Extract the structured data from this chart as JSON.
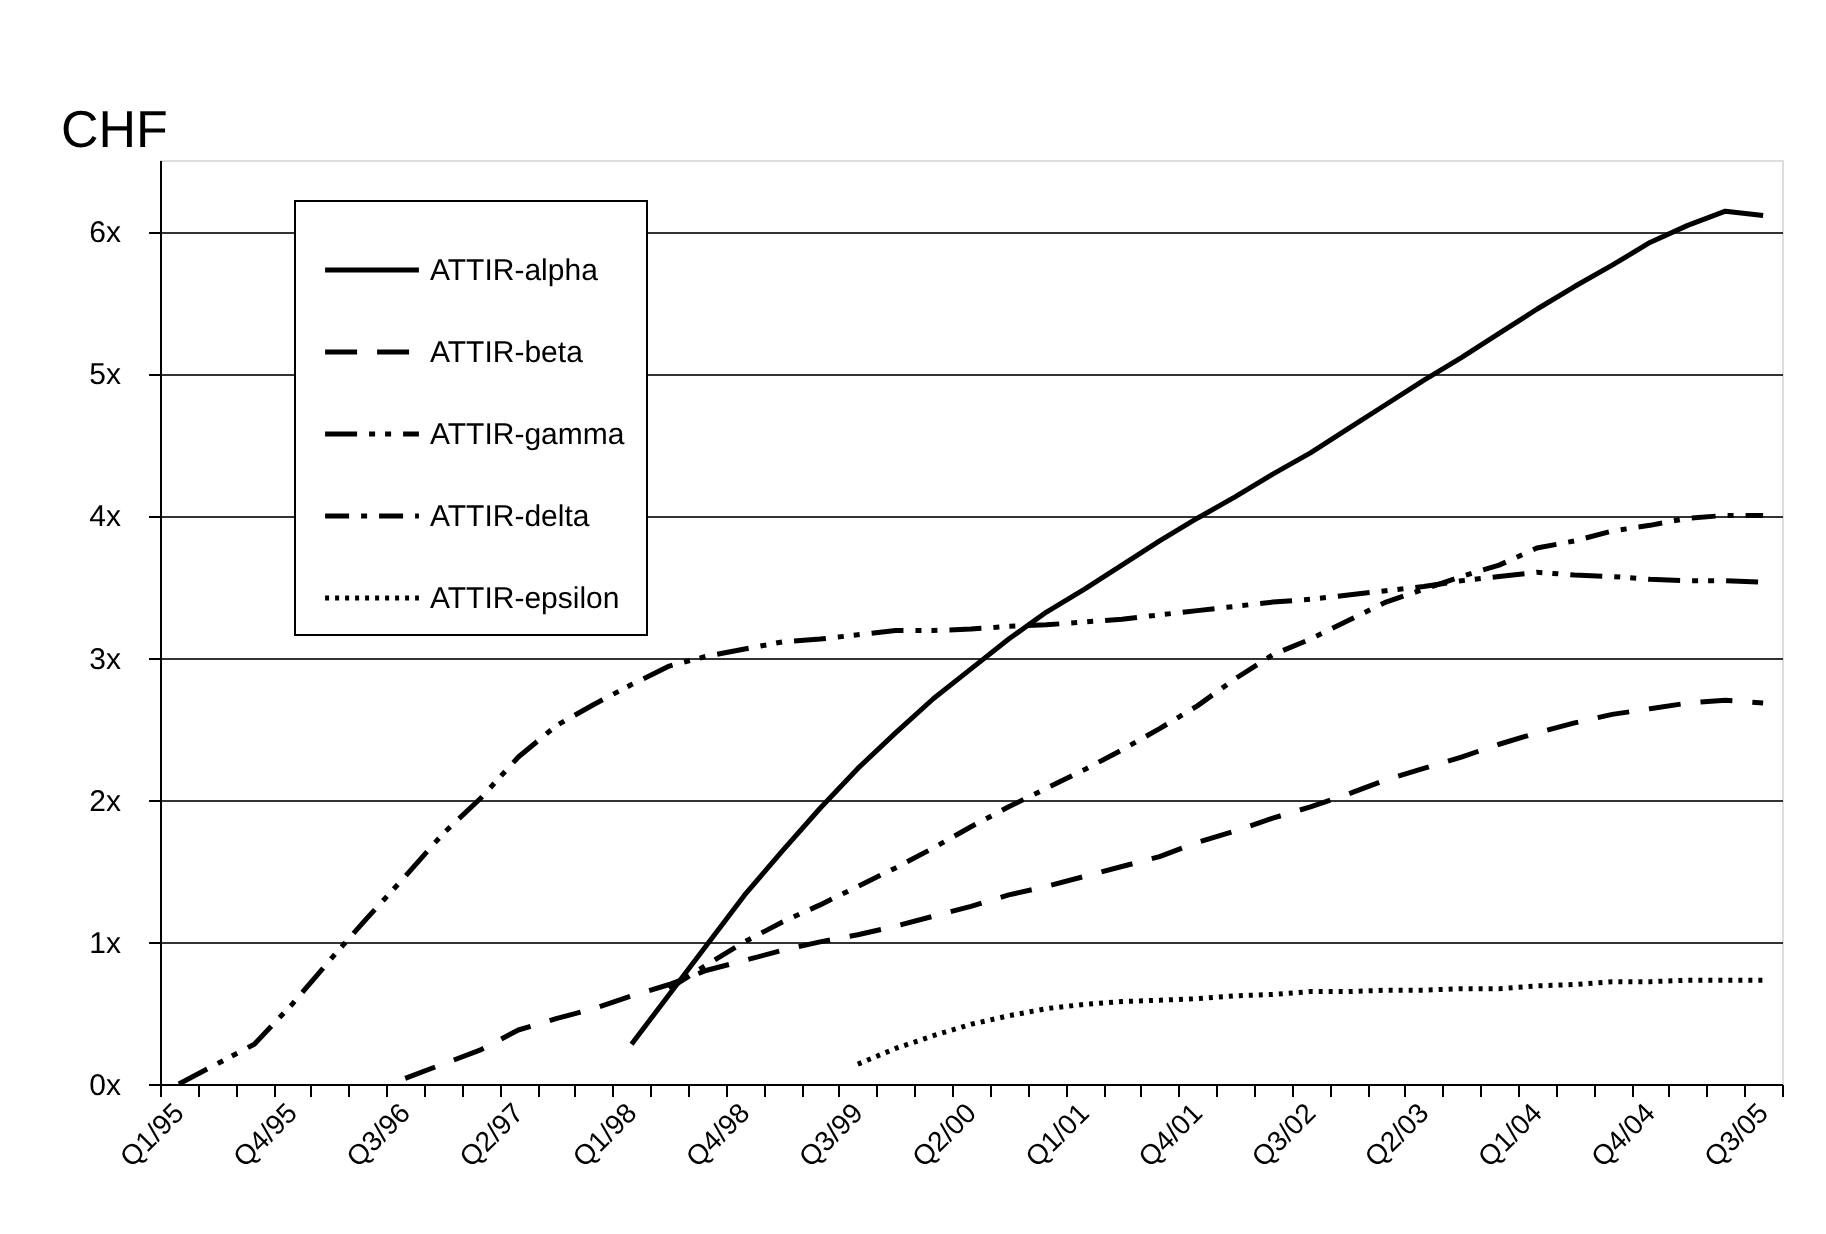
{
  "chart_data": {
    "type": "line",
    "ylabel": "CHF",
    "categories": [
      "Q1/95",
      null,
      null,
      "Q4/95",
      null,
      null,
      "Q3/96",
      null,
      null,
      "Q2/97",
      null,
      null,
      "Q1/98",
      null,
      null,
      "Q4/98",
      null,
      null,
      "Q3/99",
      null,
      null,
      "Q2/00",
      null,
      null,
      "Q1/01",
      null,
      null,
      "Q4/01",
      null,
      null,
      "Q3/02",
      null,
      null,
      "Q2/03",
      null,
      null,
      "Q1/04",
      null,
      null,
      "Q4/04",
      null,
      null,
      "Q3/05"
    ],
    "series": [
      {
        "name": "ATTIR-alpha",
        "color": "#000000",
        "line_style": "solid",
        "values": [
          null,
          null,
          null,
          null,
          null,
          null,
          null,
          null,
          null,
          null,
          null,
          null,
          0.28,
          0.63,
          0.98,
          1.33,
          1.64,
          1.94,
          2.22,
          2.47,
          2.71,
          2.92,
          3.13,
          3.32,
          3.48,
          3.65,
          3.82,
          3.98,
          4.13,
          4.29,
          4.44,
          4.61,
          4.78,
          4.95,
          5.11,
          5.28,
          5.45,
          5.61,
          5.76,
          5.92,
          6.04,
          6.14,
          6.11
        ]
      },
      {
        "name": "ATTIR-beta",
        "color": "#000000",
        "line_style": "dashed",
        "values": [
          null,
          null,
          null,
          null,
          null,
          null,
          0.04,
          0.14,
          0.24,
          0.38,
          0.46,
          0.53,
          0.62,
          0.7,
          0.8,
          0.87,
          0.94,
          1.0,
          1.05,
          1.11,
          1.18,
          1.25,
          1.33,
          1.39,
          1.46,
          1.53,
          1.6,
          1.7,
          1.78,
          1.87,
          1.95,
          2.04,
          2.14,
          2.22,
          2.3,
          2.39,
          2.47,
          2.54,
          2.6,
          2.64,
          2.68,
          2.7,
          2.68
        ]
      },
      {
        "name": "ATTIR-gamma",
        "color": "#000000",
        "line_style": "dashdotdot",
        "values": [
          0.0,
          0.14,
          0.28,
          0.56,
          0.87,
          1.17,
          1.46,
          1.76,
          2.01,
          2.3,
          2.52,
          2.67,
          2.81,
          2.94,
          3.01,
          3.06,
          3.11,
          3.13,
          3.16,
          3.19,
          3.19,
          3.2,
          3.22,
          3.23,
          3.25,
          3.27,
          3.3,
          3.33,
          3.36,
          3.39,
          3.41,
          3.44,
          3.47,
          3.5,
          3.54,
          3.57,
          3.6,
          3.58,
          3.57,
          3.55,
          3.54,
          3.54,
          3.53
        ]
      },
      {
        "name": "ATTIR-delta",
        "color": "#000000",
        "line_style": "dashdot",
        "values": [
          null,
          null,
          null,
          null,
          null,
          null,
          null,
          null,
          null,
          null,
          null,
          null,
          null,
          0.67,
          0.84,
          1.0,
          1.14,
          1.26,
          1.39,
          1.52,
          1.66,
          1.81,
          1.95,
          2.08,
          2.21,
          2.35,
          2.5,
          2.66,
          2.85,
          3.02,
          3.13,
          3.26,
          3.39,
          3.48,
          3.57,
          3.65,
          3.77,
          3.82,
          3.89,
          3.93,
          3.98,
          4.0,
          4.0
        ]
      },
      {
        "name": "ATTIR-epsilon",
        "color": "#000000",
        "line_style": "dotted",
        "values": [
          null,
          null,
          null,
          null,
          null,
          null,
          null,
          null,
          null,
          null,
          null,
          null,
          null,
          null,
          null,
          null,
          null,
          null,
          0.14,
          0.25,
          0.34,
          0.42,
          0.48,
          0.53,
          0.56,
          0.58,
          0.59,
          0.6,
          0.62,
          0.63,
          0.65,
          0.65,
          0.66,
          0.66,
          0.67,
          0.67,
          0.69,
          0.7,
          0.72,
          0.72,
          0.73,
          0.73,
          0.73
        ]
      }
    ],
    "ylim": [
      0,
      6.5
    ],
    "yticks": [
      {
        "value": 0,
        "label": "0x"
      },
      {
        "value": 1,
        "label": "1x"
      },
      {
        "value": 2,
        "label": "2x"
      },
      {
        "value": 3,
        "label": "3x"
      },
      {
        "value": 4,
        "label": "4x"
      },
      {
        "value": 5,
        "label": "5x"
      },
      {
        "value": 6,
        "label": "6x"
      }
    ],
    "grid": "y",
    "legend": "top left"
  }
}
